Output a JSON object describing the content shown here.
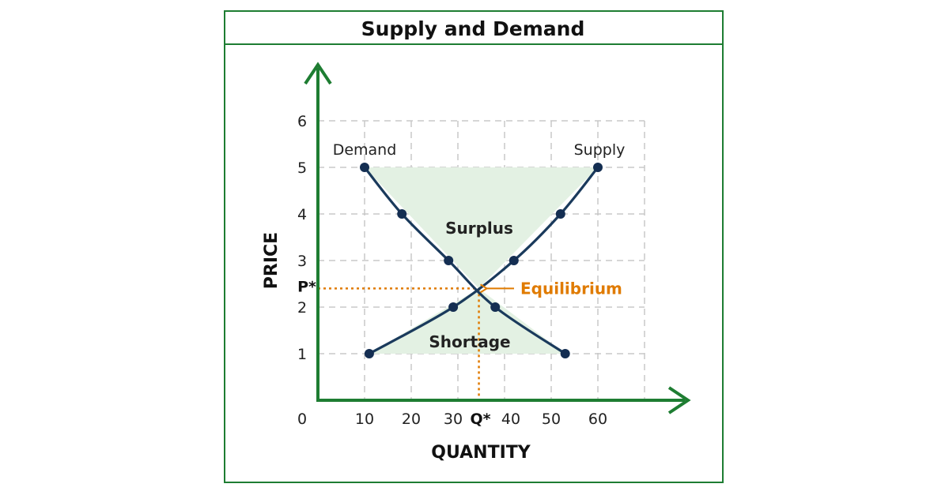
{
  "colors": {
    "frame": "#1e7d32",
    "axis": "#1e7d32",
    "curve": "#1a3a5c",
    "point": "#142e52",
    "grid": "#c8c8c8",
    "region_fill": "#e3f1e3",
    "equilibrium": "#e07b00"
  },
  "chart_data": {
    "type": "line",
    "title": "Supply and Demand",
    "xlabel": "QUANTITY",
    "ylabel": "PRICE",
    "xlim": [
      0,
      70
    ],
    "ylim": [
      0,
      7
    ],
    "x_ticks": [
      "10",
      "20",
      "30",
      "40",
      "50",
      "60"
    ],
    "y_ticks": [
      "1",
      "2",
      "3",
      "4",
      "5",
      "6"
    ],
    "origin_label": "0",
    "grid": true,
    "series": [
      {
        "name": "Demand",
        "points": [
          [
            10,
            5
          ],
          [
            18,
            4
          ],
          [
            28,
            3
          ],
          [
            38,
            2
          ],
          [
            53,
            1
          ]
        ]
      },
      {
        "name": "Supply",
        "points": [
          [
            11,
            1
          ],
          [
            29,
            2
          ],
          [
            42,
            3
          ],
          [
            52,
            4
          ],
          [
            60,
            5
          ]
        ]
      }
    ],
    "equilibrium": {
      "label": "Equilibrium",
      "price_label": "P*",
      "quantity_label": "Q*",
      "x": 34.5,
      "y": 2.4
    },
    "annotations": {
      "surplus": "Surplus",
      "shortage": "Shortage"
    }
  }
}
